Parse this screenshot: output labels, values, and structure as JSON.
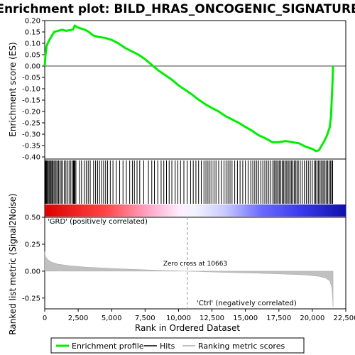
{
  "chart_data": {
    "type": "line",
    "title": "Enrichment plot: BILD_HRAS_ONCOGENIC_SIGNATURE",
    "panels": {
      "es": {
        "ylabel": "Enrichment score (ES)",
        "ylim": [
          -0.4,
          0.2
        ],
        "yticks": [
          "0.20",
          "0.15",
          "0.10",
          "0.05",
          "0.00",
          "-0.05",
          "-0.10",
          "-0.15",
          "-0.20",
          "-0.25",
          "-0.30",
          "-0.35",
          "-0.40"
        ],
        "series_color": "#00ff00",
        "points": [
          [
            0,
            0.0
          ],
          [
            60,
            0.05
          ],
          [
            150,
            0.09
          ],
          [
            300,
            0.11
          ],
          [
            500,
            0.13
          ],
          [
            700,
            0.15
          ],
          [
            1000,
            0.155
          ],
          [
            1300,
            0.16
          ],
          [
            1600,
            0.155
          ],
          [
            1900,
            0.158
          ],
          [
            2100,
            0.16
          ],
          [
            2250,
            0.178
          ],
          [
            2400,
            0.172
          ],
          [
            2700,
            0.165
          ],
          [
            3000,
            0.16
          ],
          [
            3300,
            0.15
          ],
          [
            3600,
            0.135
          ],
          [
            4000,
            0.128
          ],
          [
            4500,
            0.124
          ],
          [
            5000,
            0.115
          ],
          [
            5500,
            0.1
          ],
          [
            6000,
            0.08
          ],
          [
            6500,
            0.065
          ],
          [
            7000,
            0.05
          ],
          [
            7500,
            0.03
          ],
          [
            8000,
            0.005
          ],
          [
            8500,
            -0.02
          ],
          [
            9000,
            -0.04
          ],
          [
            9500,
            -0.06
          ],
          [
            10000,
            -0.085
          ],
          [
            10500,
            -0.105
          ],
          [
            11000,
            -0.125
          ],
          [
            11500,
            -0.148
          ],
          [
            12000,
            -0.168
          ],
          [
            12500,
            -0.185
          ],
          [
            13000,
            -0.2
          ],
          [
            13500,
            -0.22
          ],
          [
            14000,
            -0.235
          ],
          [
            14500,
            -0.25
          ],
          [
            15000,
            -0.268
          ],
          [
            15500,
            -0.285
          ],
          [
            16000,
            -0.305
          ],
          [
            16500,
            -0.318
          ],
          [
            17000,
            -0.335
          ],
          [
            17500,
            -0.335
          ],
          [
            18000,
            -0.33
          ],
          [
            18500,
            -0.335
          ],
          [
            19000,
            -0.34
          ],
          [
            19500,
            -0.355
          ],
          [
            20000,
            -0.365
          ],
          [
            20300,
            -0.375
          ],
          [
            20500,
            -0.37
          ],
          [
            20700,
            -0.35
          ],
          [
            20900,
            -0.33
          ],
          [
            21100,
            -0.305
          ],
          [
            21300,
            -0.27
          ],
          [
            21400,
            -0.22
          ],
          [
            21450,
            -0.15
          ],
          [
            21500,
            -0.08
          ],
          [
            21550,
            0.0
          ]
        ]
      },
      "hits": {
        "positions": [
          30,
          80,
          130,
          190,
          260,
          330,
          400,
          470,
          540,
          610,
          690,
          770,
          850,
          940,
          1030,
          1130,
          1230,
          1340,
          1460,
          1580,
          1700,
          1820,
          1950,
          2080,
          2150,
          2200,
          2250,
          2330,
          2600,
          2750,
          2950,
          3100,
          3250,
          3400,
          3650,
          3800,
          3950,
          4100,
          4250,
          4400,
          4550,
          4700,
          4900,
          5100,
          5350,
          5600,
          5850,
          6100,
          6350,
          6550,
          6700,
          6900,
          7100,
          7400,
          7750,
          8000,
          8200,
          8450,
          8700,
          8900,
          9100,
          9300,
          9500,
          9750,
          9950,
          10150,
          10400,
          10650,
          10900,
          11100,
          11300,
          11500,
          11700,
          11900,
          12050,
          12200,
          12350,
          12500,
          12650,
          12800,
          13000,
          13200,
          13400,
          13550,
          13700,
          13850,
          14000,
          14200,
          14400,
          14600,
          14800,
          15000,
          15200,
          15400,
          15550,
          15700,
          15850,
          16000,
          16150,
          16300,
          16450,
          16600,
          16750,
          16900,
          17050,
          17150,
          17250,
          17350,
          17450,
          17550,
          17650,
          17750,
          17850,
          17950,
          18050,
          18150,
          18250,
          18350,
          18450,
          18550,
          18650,
          18750,
          18850,
          18950,
          19100,
          19250,
          19400,
          19550,
          19700,
          19850,
          20000,
          20150,
          20250,
          20350,
          20450,
          20550,
          20650,
          20750,
          20850,
          20950,
          21050,
          21150,
          21250,
          21350,
          21450,
          21520
        ]
      },
      "ranked": {
        "ylabel": "Ranked list metric (Signal2Noise)",
        "ylim": [
          -0.35,
          0.5
        ],
        "yticks": [
          "0.50",
          "0.25",
          "0.00",
          "-0.25"
        ],
        "points": [
          [
            0,
            0.18
          ],
          [
            50,
            0.14
          ],
          [
            200,
            0.11
          ],
          [
            500,
            0.085
          ],
          [
            1000,
            0.065
          ],
          [
            2000,
            0.048
          ],
          [
            3000,
            0.038
          ],
          [
            5000,
            0.025
          ],
          [
            7000,
            0.015
          ],
          [
            9000,
            0.006
          ],
          [
            10663,
            0.0
          ],
          [
            12000,
            -0.006
          ],
          [
            14000,
            -0.013
          ],
          [
            16000,
            -0.02
          ],
          [
            18000,
            -0.028
          ],
          [
            19500,
            -0.036
          ],
          [
            20500,
            -0.048
          ],
          [
            21000,
            -0.065
          ],
          [
            21300,
            -0.09
          ],
          [
            21450,
            -0.15
          ],
          [
            21520,
            -0.25
          ],
          [
            21550,
            -0.33
          ]
        ]
      }
    },
    "x": {
      "label": "Rank in Ordered Dataset",
      "lim": [
        0,
        22500
      ],
      "ticks": [
        "0",
        "2,500",
        "5,000",
        "7,500",
        "10,000",
        "12,500",
        "15,000",
        "17,500",
        "20,000",
        "22,500"
      ]
    },
    "annotations": {
      "pos": "'GRD' (positively correlated)",
      "neg": "'Ctrl' (negatively correlated)",
      "zero": "Zero cross at 10663",
      "zero_rank": 10663
    },
    "colors": {
      "pos_label": "#cc0000",
      "neg_label": "#0000cc"
    },
    "legend": {
      "placement": "bottom",
      "items": [
        "Enrichment profile",
        "Hits",
        "Ranking metric scores"
      ]
    }
  }
}
